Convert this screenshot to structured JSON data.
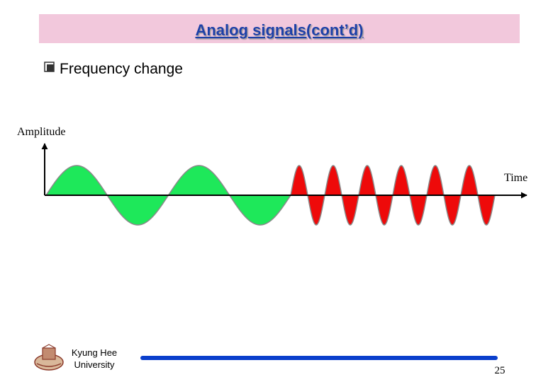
{
  "header": {
    "title": "Analog signals(cont’d)"
  },
  "bullet": {
    "text": "Frequency change"
  },
  "diagram": {
    "y_axis_label": "Amplitude",
    "x_axis_label": "Time"
  },
  "footer": {
    "institution": [
      "Kyung Hee",
      "University"
    ],
    "page_number": "25"
  }
}
